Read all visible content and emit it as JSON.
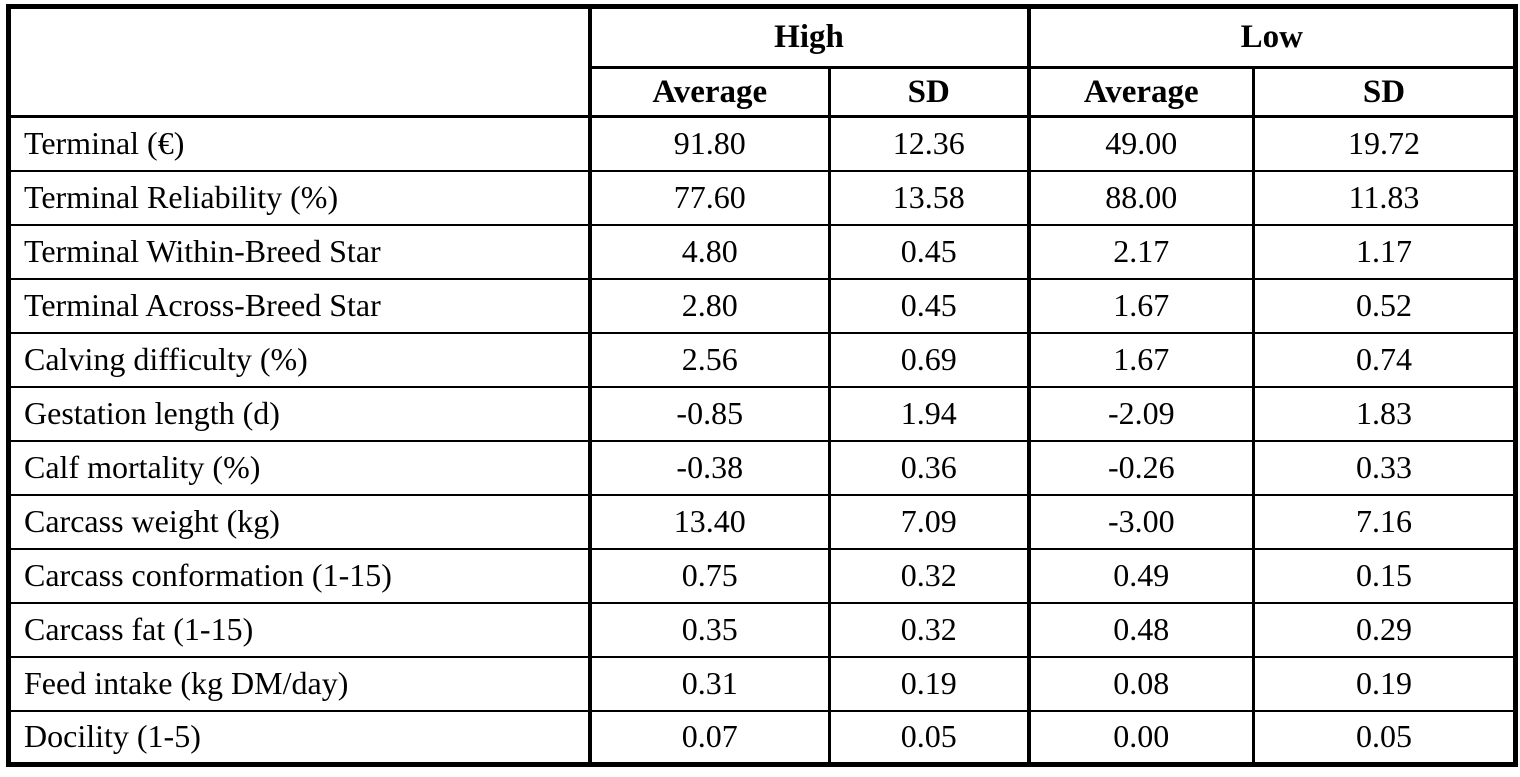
{
  "page": {
    "background_color": "#ffffff"
  },
  "table": {
    "colors": {
      "border": "#000000",
      "text": "#000000",
      "background": "#ffffff"
    },
    "corner_label": "",
    "group_headers": [
      {
        "label": "High"
      },
      {
        "label": "Low"
      }
    ],
    "sub_headers": [
      "Average",
      "SD",
      "Average",
      "SD"
    ],
    "rows": [
      {
        "label": "Terminal (€)",
        "values": [
          "91.80",
          "12.36",
          "49.00",
          "19.72"
        ]
      },
      {
        "label": "Terminal Reliability (%)",
        "values": [
          "77.60",
          "13.58",
          "88.00",
          "11.83"
        ]
      },
      {
        "label": "Terminal Within-Breed Star",
        "values": [
          "4.80",
          "0.45",
          "2.17",
          "1.17"
        ]
      },
      {
        "label": "Terminal Across-Breed Star",
        "values": [
          "2.80",
          "0.45",
          "1.67",
          "0.52"
        ]
      },
      {
        "label": "Calving difficulty (%)",
        "values": [
          "2.56",
          "0.69",
          "1.67",
          "0.74"
        ]
      },
      {
        "label": "Gestation length (d)",
        "values": [
          "-0.85",
          "1.94",
          "-2.09",
          "1.83"
        ]
      },
      {
        "label": "Calf mortality (%)",
        "values": [
          "-0.38",
          "0.36",
          "-0.26",
          "0.33"
        ]
      },
      {
        "label": "Carcass weight (kg)",
        "values": [
          "13.40",
          "7.09",
          "-3.00",
          "7.16"
        ]
      },
      {
        "label": "Carcass conformation (1-15)",
        "values": [
          "0.75",
          "0.32",
          "0.49",
          "0.15"
        ]
      },
      {
        "label": "Carcass fat (1-15)",
        "values": [
          "0.35",
          "0.32",
          "0.48",
          "0.29"
        ]
      },
      {
        "label": "Feed intake (kg DM/day)",
        "values": [
          "0.31",
          "0.19",
          "0.08",
          "0.19"
        ]
      },
      {
        "label": "Docility (1-5)",
        "values": [
          "0.07",
          "0.05",
          "0.00",
          "0.05"
        ]
      }
    ]
  }
}
